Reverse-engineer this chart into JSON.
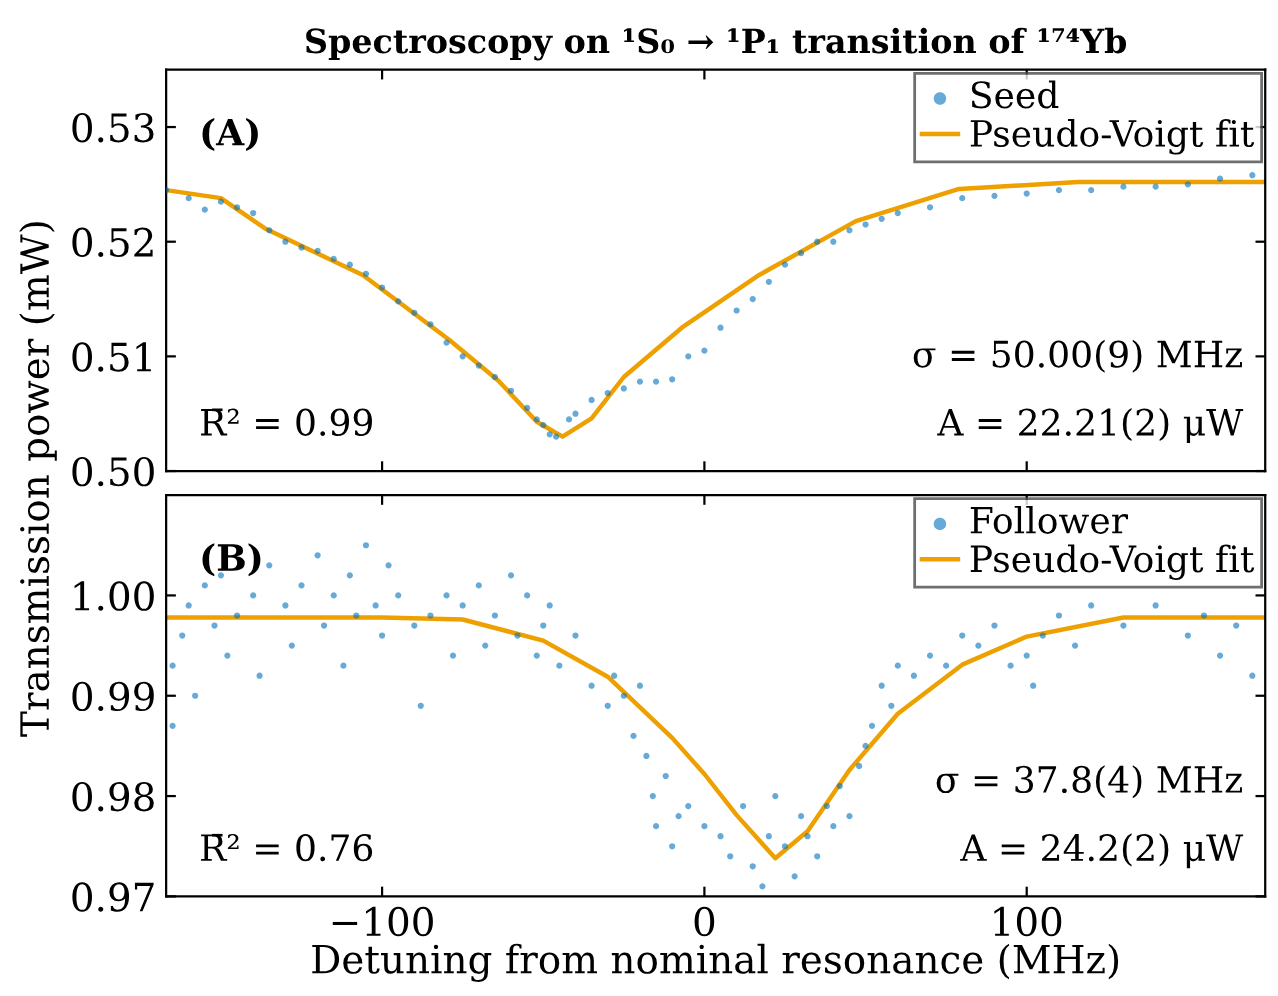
{
  "chart_data": [
    {
      "type": "scatter",
      "title": "Spectroscopy on ¹S₀ → ¹P₁ transition of ¹⁷⁴Yb",
      "ylabel": "Transmission power (mW)",
      "xlim": [
        -167,
        174
      ],
      "xticks": [
        -100,
        0,
        100
      ],
      "ylim": [
        0.5,
        0.535
      ],
      "yticks": [
        {
          "value": 0.5,
          "label": "0.50"
        },
        0.51,
        0.52,
        0.53
      ],
      "tick_labels": "y",
      "legend": "top right",
      "grid": false,
      "annotations": [
        "(A)",
        "R̄² = 0.99",
        "σ = 50.00(9) MHz",
        "A = 22.21(2) μW"
      ],
      "series": [
        {
          "name": "Seed",
          "color": "#0072bd",
          "marker": "circle",
          "x": [
            -167,
            -160,
            -155,
            -150,
            -145,
            -140,
            -135,
            -130,
            -125,
            -120,
            -115,
            -110,
            -105,
            -100,
            -95,
            -90,
            -85,
            -80,
            -75,
            -70,
            -65,
            -60,
            -55,
            -52,
            -50,
            -48,
            -46,
            -42,
            -40,
            -35,
            -30,
            -25,
            -20,
            -15,
            -10,
            -5,
            0,
            5,
            10,
            15,
            20,
            25,
            30,
            35,
            40,
            45,
            50,
            55,
            60,
            70,
            80,
            90,
            100,
            110,
            120,
            130,
            140,
            150,
            160,
            170
          ],
          "values": [
            0.5245,
            0.5238,
            0.5228,
            0.5235,
            0.523,
            0.5225,
            0.521,
            0.52,
            0.5195,
            0.5192,
            0.5185,
            0.518,
            0.5172,
            0.516,
            0.5148,
            0.5138,
            0.5128,
            0.5112,
            0.51,
            0.5092,
            0.5082,
            0.507,
            0.5055,
            0.5045,
            0.504,
            0.5032,
            0.503,
            0.5045,
            0.505,
            0.5062,
            0.5068,
            0.5072,
            0.5078,
            0.5078,
            0.508,
            0.51,
            0.5105,
            0.5125,
            0.514,
            0.515,
            0.5165,
            0.518,
            0.519,
            0.52,
            0.52,
            0.521,
            0.5215,
            0.522,
            0.5225,
            0.523,
            0.5238,
            0.524,
            0.5242,
            0.5245,
            0.5245,
            0.5248,
            0.5248,
            0.525,
            0.5255,
            0.5258
          ]
        },
        {
          "name": "Pseudo-Voigt fit",
          "type": "line",
          "color": "#eda000",
          "marker": "none",
          "line_style": "solid",
          "x": [
            -167,
            -150,
            -136,
            -106,
            -79,
            -64,
            -52,
            -44,
            -35,
            -25,
            -7,
            17,
            47,
            79,
            116,
            174
          ],
          "values": [
            0.5245,
            0.5238,
            0.5211,
            0.5171,
            0.5114,
            0.5079,
            0.5043,
            0.503,
            0.5046,
            0.5082,
            0.5125,
            0.5171,
            0.5218,
            0.5246,
            0.5252,
            0.5252
          ]
        }
      ]
    },
    {
      "type": "scatter",
      "xlabel": "Detuning from nominal resonance (MHz)",
      "xlim": [
        -167,
        174
      ],
      "xticks": [
        {
          "value": -100,
          "label": "−100"
        },
        0,
        100
      ],
      "ylim": [
        0.97,
        1.01
      ],
      "yticks": [
        {
          "value": 0.97,
          "label": "0.97"
        },
        {
          "value": 0.98,
          "label": "0.98"
        },
        {
          "value": 0.99,
          "label": "0.99"
        },
        {
          "value": 1.0,
          "label": "1.00"
        }
      ],
      "legend": "top right",
      "grid": false,
      "annotations": [
        "(B)",
        "R̄² = 0.76",
        "σ = 37.8(4) MHz",
        "A = 24.2(2) μW"
      ],
      "series": [
        {
          "name": "Follower",
          "color": "#0072bd",
          "marker": "circle",
          "x": [
            -165,
            -165,
            -162,
            -160,
            -158,
            -155,
            -152,
            -150,
            -148,
            -145,
            -140,
            -138,
            -135,
            -130,
            -128,
            -125,
            -120,
            -118,
            -115,
            -112,
            -110,
            -108,
            -105,
            -102,
            -100,
            -98,
            -95,
            -90,
            -88,
            -85,
            -80,
            -78,
            -75,
            -70,
            -68,
            -65,
            -60,
            -58,
            -55,
            -52,
            -50,
            -48,
            -45,
            -40,
            -35,
            -30,
            -28,
            -25,
            -22,
            -20,
            -18,
            -16,
            -15,
            -12,
            -10,
            -8,
            -5,
            0,
            5,
            8,
            12,
            15,
            18,
            20,
            22,
            25,
            28,
            30,
            32,
            35,
            38,
            40,
            42,
            45,
            48,
            50,
            52,
            55,
            58,
            60,
            65,
            70,
            75,
            80,
            85,
            90,
            95,
            100,
            102,
            105,
            110,
            115,
            120,
            130,
            140,
            150,
            155,
            160,
            165,
            170
          ],
          "values": [
            0.993,
            0.987,
            0.996,
            0.999,
            0.99,
            1.001,
            0.997,
            1.002,
            0.994,
            0.998,
            1.0,
            0.992,
            1.003,
            0.999,
            0.995,
            1.001,
            1.004,
            0.997,
            1.0,
            0.993,
            1.002,
            0.998,
            1.005,
            0.999,
            0.996,
            1.003,
            1.0,
            0.997,
            0.989,
            0.998,
            1.0,
            0.994,
            0.999,
            1.001,
            0.995,
            0.998,
            1.002,
            0.996,
            1.0,
            0.994,
            0.997,
            0.999,
            0.993,
            0.996,
            0.991,
            0.989,
            0.992,
            0.99,
            0.986,
            0.991,
            0.984,
            0.98,
            0.977,
            0.982,
            0.975,
            0.978,
            0.979,
            0.977,
            0.976,
            0.974,
            0.979,
            0.973,
            0.971,
            0.976,
            0.98,
            0.975,
            0.972,
            0.978,
            0.976,
            0.974,
            0.979,
            0.977,
            0.981,
            0.978,
            0.983,
            0.985,
            0.987,
            0.991,
            0.989,
            0.993,
            0.992,
            0.994,
            0.993,
            0.996,
            0.995,
            0.997,
            0.993,
            0.994,
            0.991,
            0.996,
            0.998,
            0.995,
            0.999,
            0.997,
            0.999,
            0.996,
            0.998,
            0.994,
            0.997,
            0.992
          ]
        },
        {
          "name": "Pseudo-Voigt fit",
          "type": "line",
          "color": "#eda000",
          "marker": "none",
          "line_style": "solid",
          "x": [
            -167,
            -100,
            -75,
            -50,
            -30,
            -10,
            0,
            10,
            22,
            32,
            45,
            60,
            80,
            100,
            130,
            174
          ],
          "values": [
            0.9978,
            0.9978,
            0.9976,
            0.9955,
            0.9919,
            0.9858,
            0.9822,
            0.9781,
            0.9738,
            0.9765,
            0.9826,
            0.9882,
            0.9931,
            0.9959,
            0.9978,
            0.9978
          ]
        }
      ]
    }
  ]
}
